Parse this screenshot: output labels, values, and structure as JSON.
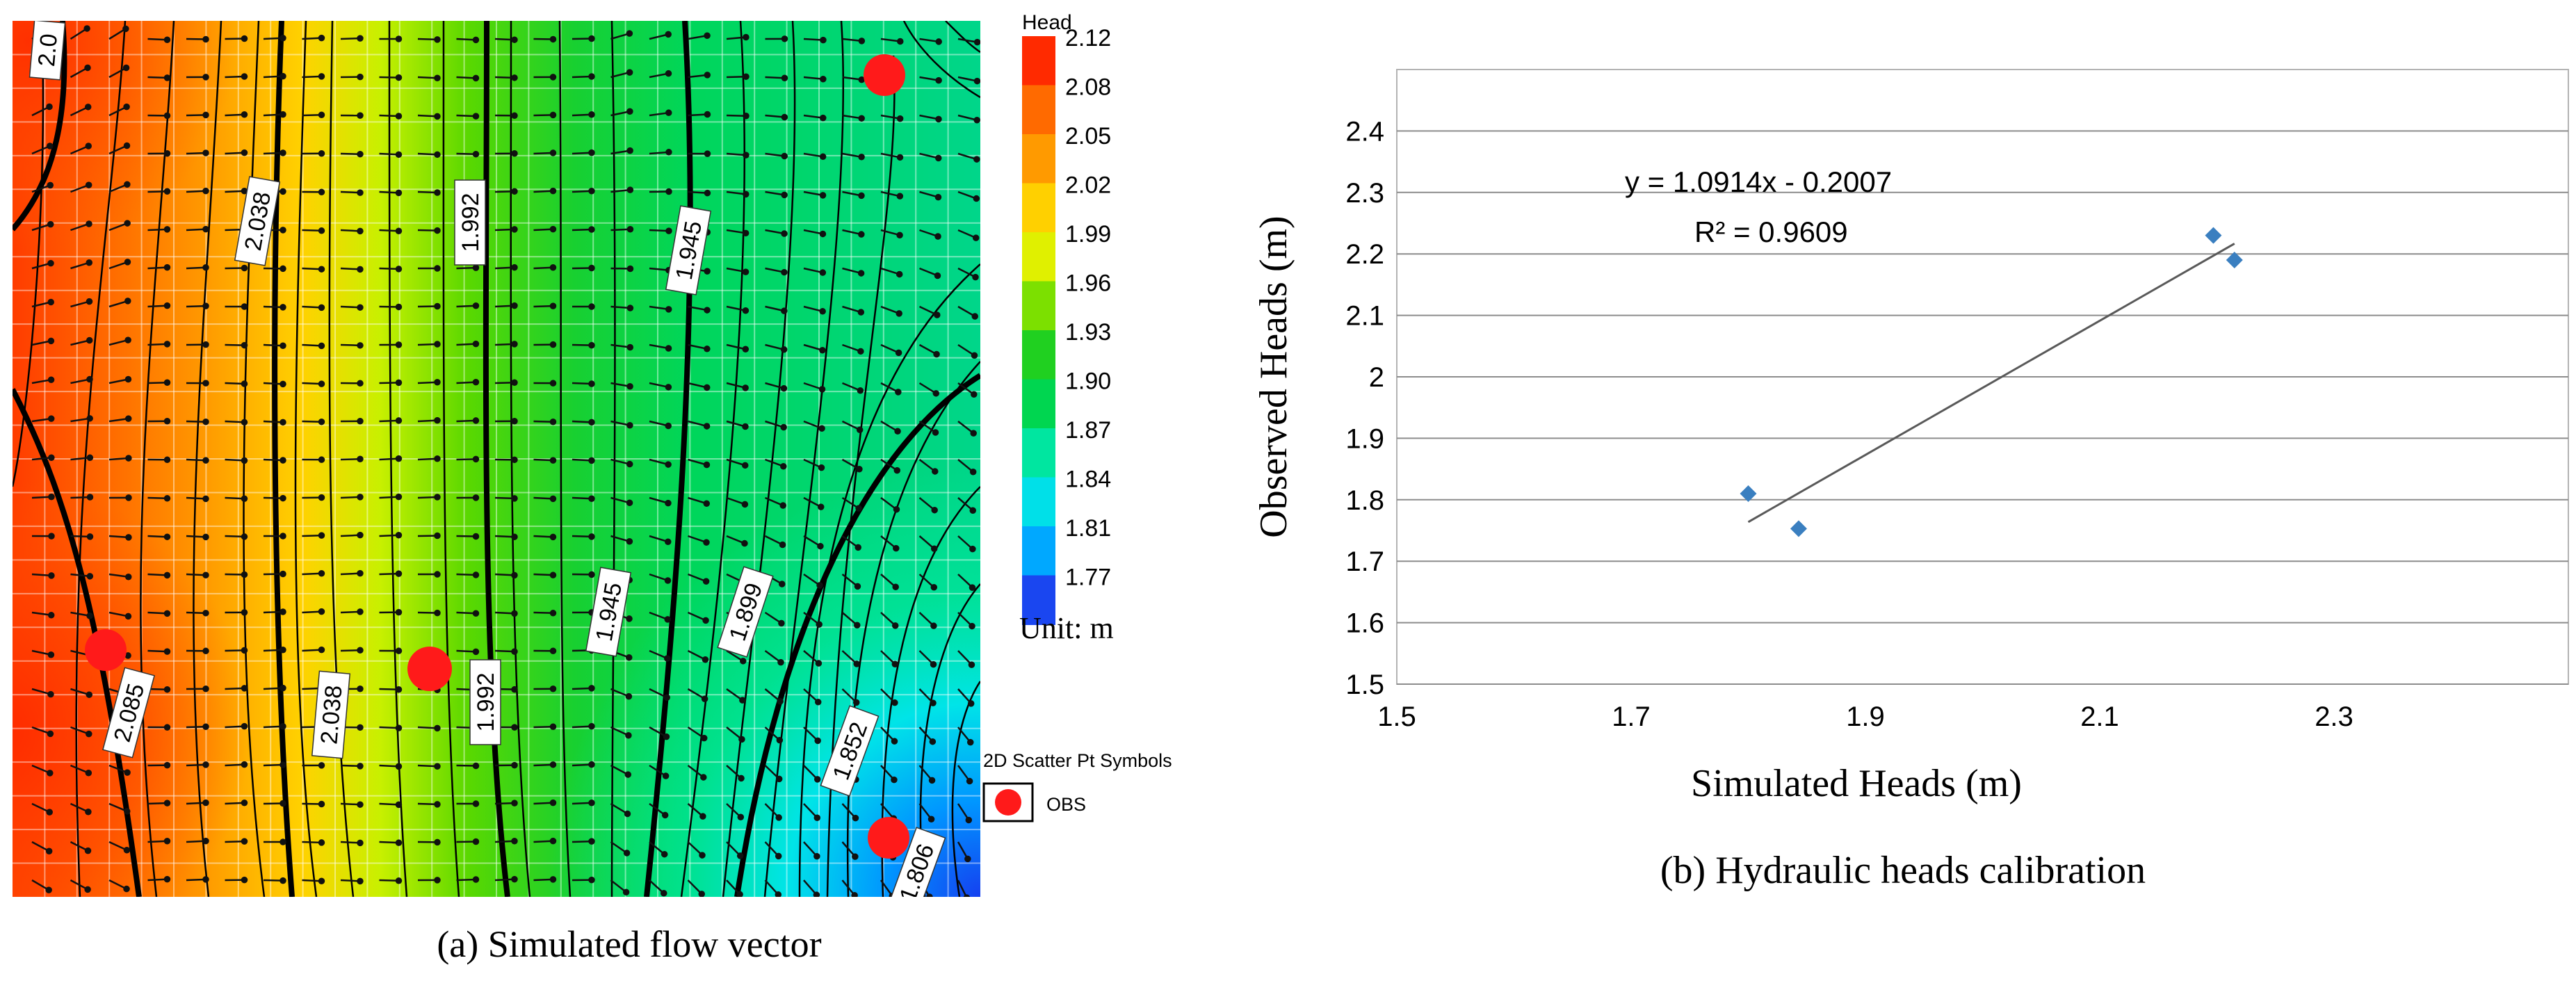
{
  "chart_data": [
    {
      "type": "heatmap",
      "title": "",
      "colorbar": {
        "title": "Head",
        "levels": [
          "2.12",
          "2.08",
          "2.05",
          "2.02",
          "1.99",
          "1.96",
          "1.93",
          "1.90",
          "1.87",
          "1.84",
          "1.81",
          "1.77"
        ],
        "colors": [
          "#ff2a00",
          "#ff6a00",
          "#ff9a00",
          "#ffd000",
          "#e0f000",
          "#7ce000",
          "#20d020",
          "#00d650",
          "#00e6a0",
          "#00e0e8",
          "#00a8ff",
          "#1a46f0"
        ],
        "unit": "Unit: m"
      },
      "contour_labels": [
        "2.0",
        "2.038",
        "1.992",
        "1.945",
        "2.038",
        "1.992",
        "1.945",
        "1.899",
        "1.852",
        "2.085",
        "1.806"
      ],
      "legend": {
        "title": "2D Scatter Pt Symbols",
        "item": "OBS"
      },
      "caption": "(a) Simulated flow vector"
    },
    {
      "type": "scatter",
      "xlabel": "Simulated Heads (m)",
      "ylabel": "Observed Heads (m)",
      "xlim": [
        1.5,
        2.5
      ],
      "ylim": [
        1.5,
        2.5
      ],
      "xticks": [
        "1.5",
        "1.7",
        "1.9",
        "2.1",
        "2.3"
      ],
      "xtick_values": [
        1.5,
        1.7,
        1.9,
        2.1,
        2.3
      ],
      "yticks": [
        "1.5",
        "1.6",
        "1.7",
        "1.8",
        "1.9",
        "2",
        "2.1",
        "2.2",
        "2.3",
        "2.4"
      ],
      "ytick_values": [
        1.5,
        1.6,
        1.7,
        1.8,
        1.9,
        2.0,
        2.1,
        2.2,
        2.3,
        2.4
      ],
      "points": [
        {
          "x": 1.8,
          "y": 1.81
        },
        {
          "x": 1.843,
          "y": 1.753
        },
        {
          "x": 2.197,
          "y": 2.23
        },
        {
          "x": 2.215,
          "y": 2.19
        }
      ],
      "trendline": {
        "slope": 1.0914,
        "intercept": -0.2007,
        "x_range": [
          1.8,
          2.215
        ]
      },
      "equation": "y = 1.0914x - 0.2007",
      "r2": "R² = 0.9609",
      "marker_color": "#3a7fc0",
      "caption": "(b) Hydraulic heads calibration"
    }
  ]
}
